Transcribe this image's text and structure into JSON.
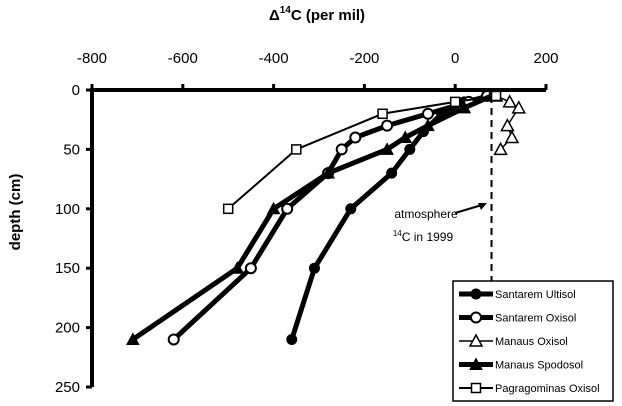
{
  "chart_data": {
    "type": "line",
    "title": "",
    "xlabel": {
      "prefix": "Δ",
      "sup": "14",
      "rest": "C (per mil)"
    },
    "ylabel": "depth (cm)",
    "xlim": [
      -800,
      200
    ],
    "ylim": [
      0,
      250
    ],
    "y_inverted": true,
    "x_axis_position": "top",
    "xticks": [
      -800,
      -600,
      -400,
      -200,
      0,
      200
    ],
    "yticks": [
      0,
      50,
      100,
      150,
      200,
      250
    ],
    "grid": false,
    "legend_position": "bottom-right",
    "series": [
      {
        "name": "Santarem Ultisol",
        "marker": "filled-circle",
        "color": "#000000",
        "points": [
          [
            80,
            5
          ],
          [
            20,
            10
          ],
          [
            -30,
            20
          ],
          [
            -70,
            35
          ],
          [
            -100,
            50
          ],
          [
            -140,
            70
          ],
          [
            -230,
            100
          ],
          [
            -310,
            150
          ],
          [
            -360,
            210
          ]
        ]
      },
      {
        "name": "Santarem Oxisol",
        "marker": "open-circle",
        "color": "#000000",
        "points": [
          [
            70,
            5
          ],
          [
            30,
            10
          ],
          [
            -60,
            20
          ],
          [
            -150,
            30
          ],
          [
            -220,
            40
          ],
          [
            -250,
            50
          ],
          [
            -280,
            70
          ],
          [
            -370,
            100
          ],
          [
            -450,
            150
          ],
          [
            -620,
            210
          ]
        ]
      },
      {
        "name": "Manaus Oxisol",
        "marker": "open-triangle",
        "color": "#000000",
        "points": [
          [
            90,
            5
          ],
          [
            120,
            10
          ],
          [
            140,
            15
          ],
          [
            115,
            30
          ],
          [
            125,
            40
          ],
          [
            100,
            50
          ]
        ]
      },
      {
        "name": "Manaus Spodosol",
        "marker": "filled-triangle",
        "color": "#000000",
        "points": [
          [
            80,
            5
          ],
          [
            20,
            15
          ],
          [
            -60,
            30
          ],
          [
            -110,
            40
          ],
          [
            -150,
            50
          ],
          [
            -280,
            70
          ],
          [
            -400,
            100
          ],
          [
            -480,
            150
          ],
          [
            -710,
            210
          ]
        ]
      },
      {
        "name": "Pagragominas Oxisol",
        "marker": "open-square",
        "color": "#000000",
        "points": [
          [
            90,
            5
          ],
          [
            0,
            10
          ],
          [
            -160,
            20
          ],
          [
            -350,
            50
          ],
          [
            -500,
            100
          ]
        ]
      }
    ],
    "reference_line": {
      "x": 80,
      "y_from": 5,
      "y_to": 225,
      "style": "dashed"
    },
    "annotation": {
      "line1": "atmosphere",
      "sup": "14",
      "line2_rest": "C in 1999"
    }
  }
}
